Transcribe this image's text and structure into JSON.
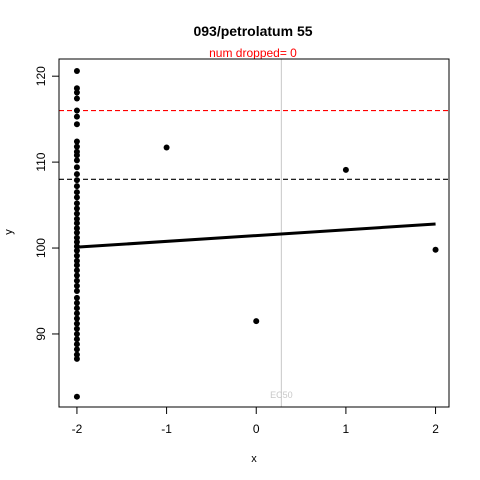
{
  "chart_data": {
    "type": "scatter",
    "title": "093/petrolatum 55",
    "subtitle": "num dropped= 0",
    "xlabel": "x",
    "ylabel": "y",
    "xlim": [
      -2.2,
      2.15
    ],
    "ylim": [
      81.5,
      122
    ],
    "x_ticks": [
      -2,
      -1,
      0,
      1,
      2
    ],
    "x_tick_labels": [
      "-2",
      "-1",
      "0",
      "1",
      "2"
    ],
    "y_ticks": [
      90,
      100,
      110,
      120
    ],
    "y_tick_labels": [
      "90",
      "100",
      "110",
      "120"
    ],
    "grid": false,
    "points": [
      {
        "x": -2,
        "y": 120.6
      },
      {
        "x": -2,
        "y": 118.6
      },
      {
        "x": -2,
        "y": 118.1
      },
      {
        "x": -2,
        "y": 117.4
      },
      {
        "x": -2,
        "y": 116.0
      },
      {
        "x": -2,
        "y": 115.3
      },
      {
        "x": -2,
        "y": 114.4
      },
      {
        "x": -2,
        "y": 112.4
      },
      {
        "x": -2,
        "y": 111.8
      },
      {
        "x": -2,
        "y": 111.2
      },
      {
        "x": -2,
        "y": 110.8
      },
      {
        "x": -2,
        "y": 110.2
      },
      {
        "x": -2,
        "y": 109.4
      },
      {
        "x": -2,
        "y": 108.6
      },
      {
        "x": -2,
        "y": 107.9
      },
      {
        "x": -2,
        "y": 107.2
      },
      {
        "x": -2,
        "y": 106.5
      },
      {
        "x": -2,
        "y": 105.9
      },
      {
        "x": -2,
        "y": 105.2
      },
      {
        "x": -2,
        "y": 104.6
      },
      {
        "x": -2,
        "y": 104.0
      },
      {
        "x": -2,
        "y": 103.4
      },
      {
        "x": -2,
        "y": 102.9
      },
      {
        "x": -2,
        "y": 102.3
      },
      {
        "x": -2,
        "y": 101.8
      },
      {
        "x": -2,
        "y": 101.2
      },
      {
        "x": -2,
        "y": 100.7
      },
      {
        "x": -2,
        "y": 100.2
      },
      {
        "x": -2,
        "y": 99.7
      },
      {
        "x": -2,
        "y": 99.1
      },
      {
        "x": -2,
        "y": 98.5
      },
      {
        "x": -2,
        "y": 98.0
      },
      {
        "x": -2,
        "y": 97.4
      },
      {
        "x": -2,
        "y": 96.8
      },
      {
        "x": -2,
        "y": 96.2
      },
      {
        "x": -2,
        "y": 95.6
      },
      {
        "x": -2,
        "y": 95.0
      },
      {
        "x": -2,
        "y": 94.2
      },
      {
        "x": -2,
        "y": 93.6
      },
      {
        "x": -2,
        "y": 93.0
      },
      {
        "x": -2,
        "y": 92.4
      },
      {
        "x": -2,
        "y": 91.8
      },
      {
        "x": -2,
        "y": 91.2
      },
      {
        "x": -2,
        "y": 90.6
      },
      {
        "x": -2,
        "y": 90.0
      },
      {
        "x": -2,
        "y": 89.4
      },
      {
        "x": -2,
        "y": 88.8
      },
      {
        "x": -2,
        "y": 88.2
      },
      {
        "x": -2,
        "y": 87.6
      },
      {
        "x": -2,
        "y": 87.1
      },
      {
        "x": -2,
        "y": 82.7
      },
      {
        "x": -1,
        "y": 111.7
      },
      {
        "x": 0,
        "y": 91.5
      },
      {
        "x": 1,
        "y": 109.1
      },
      {
        "x": 2,
        "y": 99.8
      }
    ],
    "fit_line": {
      "x": [
        -2,
        2
      ],
      "y": [
        100.1,
        102.8
      ]
    },
    "reference_lines": [
      {
        "y": 116.0,
        "color": "#ff0000",
        "style": "dashed"
      },
      {
        "y": 108.0,
        "color": "#000000",
        "style": "dashed"
      }
    ],
    "ec50": {
      "x": 0.28,
      "label": "EC50",
      "color": "#c8c8c8"
    }
  }
}
